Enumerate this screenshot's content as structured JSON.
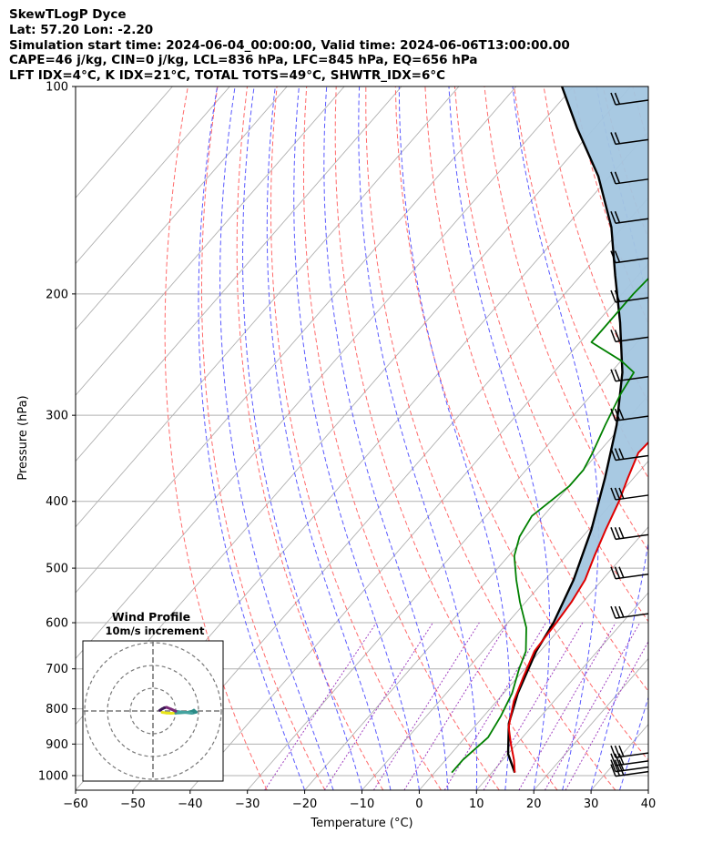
{
  "header": {
    "line1": "SkewTLogP Dyce",
    "line2": "Lat: 57.20   Lon: -2.20",
    "line3": "Simulation start time: 2024-06-04_00:00:00, Valid time: 2024-06-06T13:00:00.00",
    "line4": "CAPE=46 j/kg, CIN=0 j/kg, LCL=836 hPa, LFC=845 hPa, EQ=656 hPa",
    "line5": "LFT IDX=4°C, K IDX=21°C, TOTAL TOTS=49°C, SHWTR_IDX=6°C"
  },
  "chart_data": [
    {
      "type": "line",
      "subtype": "skew-T log-P diagram",
      "xlabel": "Temperature (°C)",
      "ylabel": "Pressure (hPa)",
      "xlim": [
        -60,
        40
      ],
      "ylim": [
        1050,
        100
      ],
      "yscale": "log",
      "x_ticks": [
        "−60",
        "−50",
        "−40",
        "−30",
        "−20",
        "−10",
        "0",
        "10",
        "20",
        "30",
        "40"
      ],
      "y_ticks": [
        "100",
        "200",
        "300",
        "400",
        "500",
        "600",
        "700",
        "800",
        "900",
        "1000"
      ],
      "grid": true,
      "colors": {
        "temperature": "#e00000",
        "dewpoint": "#008000",
        "parcel": "#000000",
        "cape_fill": "#a3c6e0",
        "dry_adiabat": "#ff6a6a",
        "moist_adiabat": "#5a5aff",
        "mixing_ratio": "#a040c0",
        "isotherm": "#b0b0b0"
      },
      "series": [
        {
          "role": "temperature",
          "points": [
            [
              14,
              990
            ],
            [
              12,
              950
            ],
            [
              9,
              900
            ],
            [
              6,
              850
            ],
            [
              3,
              780
            ],
            [
              1,
              720
            ],
            [
              -1,
              660
            ],
            [
              -1.5,
              600
            ],
            [
              -2,
              560
            ],
            [
              -3,
              520
            ],
            [
              -5,
              480
            ],
            [
              -7,
              440
            ],
            [
              -9,
              400
            ],
            [
              -11,
              370
            ],
            [
              -13,
              340
            ],
            [
              -12.5,
              310
            ],
            [
              -11,
              280
            ],
            [
              -9,
              260
            ],
            [
              -6.5,
              240
            ],
            [
              -4,
              220
            ],
            [
              -3,
              200
            ],
            [
              -3,
              185
            ],
            [
              -3,
              170
            ],
            [
              -3.5,
              155
            ],
            [
              -3,
              145
            ],
            [
              -2,
              130
            ],
            [
              -2,
              120
            ],
            [
              -1,
              113
            ],
            [
              0,
              107
            ],
            [
              0.5,
              100
            ]
          ]
        },
        {
          "role": "dewpoint",
          "points": [
            [
              3,
              990
            ],
            [
              3,
              950
            ],
            [
              4,
              880
            ],
            [
              3,
              820
            ],
            [
              1.5,
              760
            ],
            [
              -1,
              700
            ],
            [
              -2.5,
              660
            ],
            [
              -6,
              610
            ],
            [
              -11,
              560
            ],
            [
              -15,
              520
            ],
            [
              -19,
              480
            ],
            [
              -21,
              450
            ],
            [
              -22,
              420
            ],
            [
              -21,
              400
            ],
            [
              -20,
              380
            ],
            [
              -20,
              360
            ],
            [
              -21,
              340
            ],
            [
              -23,
              310
            ],
            [
              -25,
              280
            ],
            [
              -26,
              260
            ],
            [
              -30,
              250
            ],
            [
              -38,
              235
            ],
            [
              -38,
              225
            ],
            [
              -38,
              200
            ],
            [
              -37,
              165
            ],
            [
              -36,
              135
            ],
            [
              -35,
              115
            ],
            [
              -34,
              100
            ]
          ]
        },
        {
          "role": "parcel",
          "points": [
            [
              14,
              990
            ],
            [
              10,
              930
            ],
            [
              5.5,
              840
            ],
            [
              2.5,
              760
            ],
            [
              -0.7,
              660
            ],
            [
              -2,
              600
            ],
            [
              -5,
              520
            ],
            [
              -9.5,
              440
            ],
            [
              -15,
              370
            ],
            [
              -21,
              310
            ],
            [
              -28,
              260
            ],
            [
              -36,
              220
            ],
            [
              -44,
              188
            ],
            [
              -52,
              160
            ],
            [
              -62,
              135
            ],
            [
              -73,
              115
            ],
            [
              -82,
              100
            ]
          ]
        }
      ],
      "wind_barbs": {
        "count": 18,
        "direction": "westerly"
      }
    },
    {
      "type": "hodograph",
      "title": "Wind Profile",
      "subtitle": "10m/s increment",
      "colors": [
        "#e8e41a",
        "#3a9a8c",
        "#2a8a86",
        "#44a3a0",
        "#7a2a78",
        "#3d1955"
      ],
      "points": [
        [
          4,
          -0.6
        ],
        [
          6,
          -0.9
        ],
        [
          8,
          -1
        ],
        [
          10,
          -0.9
        ],
        [
          12,
          -0.8
        ],
        [
          15,
          -0.6
        ],
        [
          17,
          -0.2
        ],
        [
          18,
          0.3
        ],
        [
          19,
          -0.5
        ],
        [
          17,
          -1
        ],
        [
          14,
          -0.6
        ],
        [
          12,
          -0.4
        ],
        [
          10,
          -0.1
        ],
        [
          8,
          0.8
        ],
        [
          6,
          1.6
        ],
        [
          5,
          1.4
        ],
        [
          4,
          0.9
        ],
        [
          3,
          0.3
        ]
      ]
    }
  ]
}
